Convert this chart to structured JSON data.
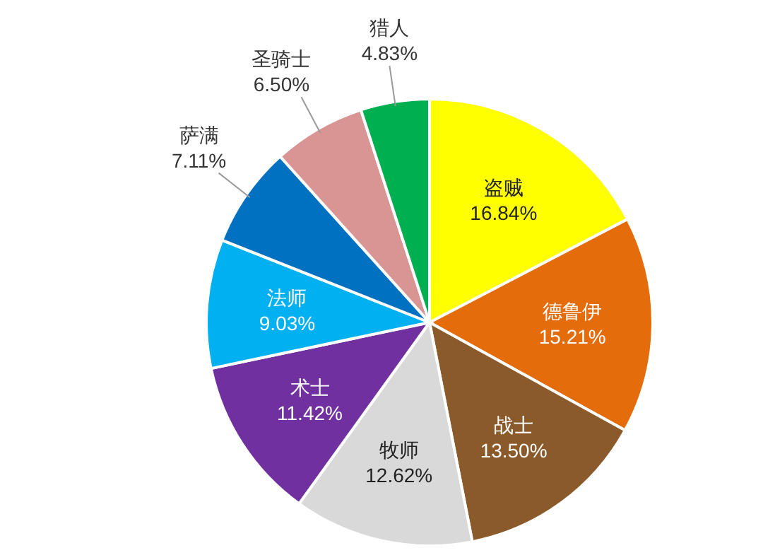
{
  "chart_data": {
    "type": "pie",
    "categories": [
      "盗贼",
      "德鲁伊",
      "战士",
      "牧师",
      "术士",
      "法师",
      "萨满",
      "圣骑士",
      "猎人"
    ],
    "values": [
      16.84,
      15.21,
      13.5,
      12.62,
      11.42,
      9.03,
      7.11,
      6.5,
      4.83
    ],
    "value_labels": [
      "16.84%",
      "15.21%",
      "13.50%",
      "12.62%",
      "11.42%",
      "9.03%",
      "7.11%",
      "6.50%",
      "4.83%"
    ],
    "colors": [
      "#ffff00",
      "#e46c0a",
      "#8b5a2b",
      "#d9d9d9",
      "#7030a0",
      "#00b0f0",
      "#0070c0",
      "#d99594",
      "#00b050"
    ]
  }
}
